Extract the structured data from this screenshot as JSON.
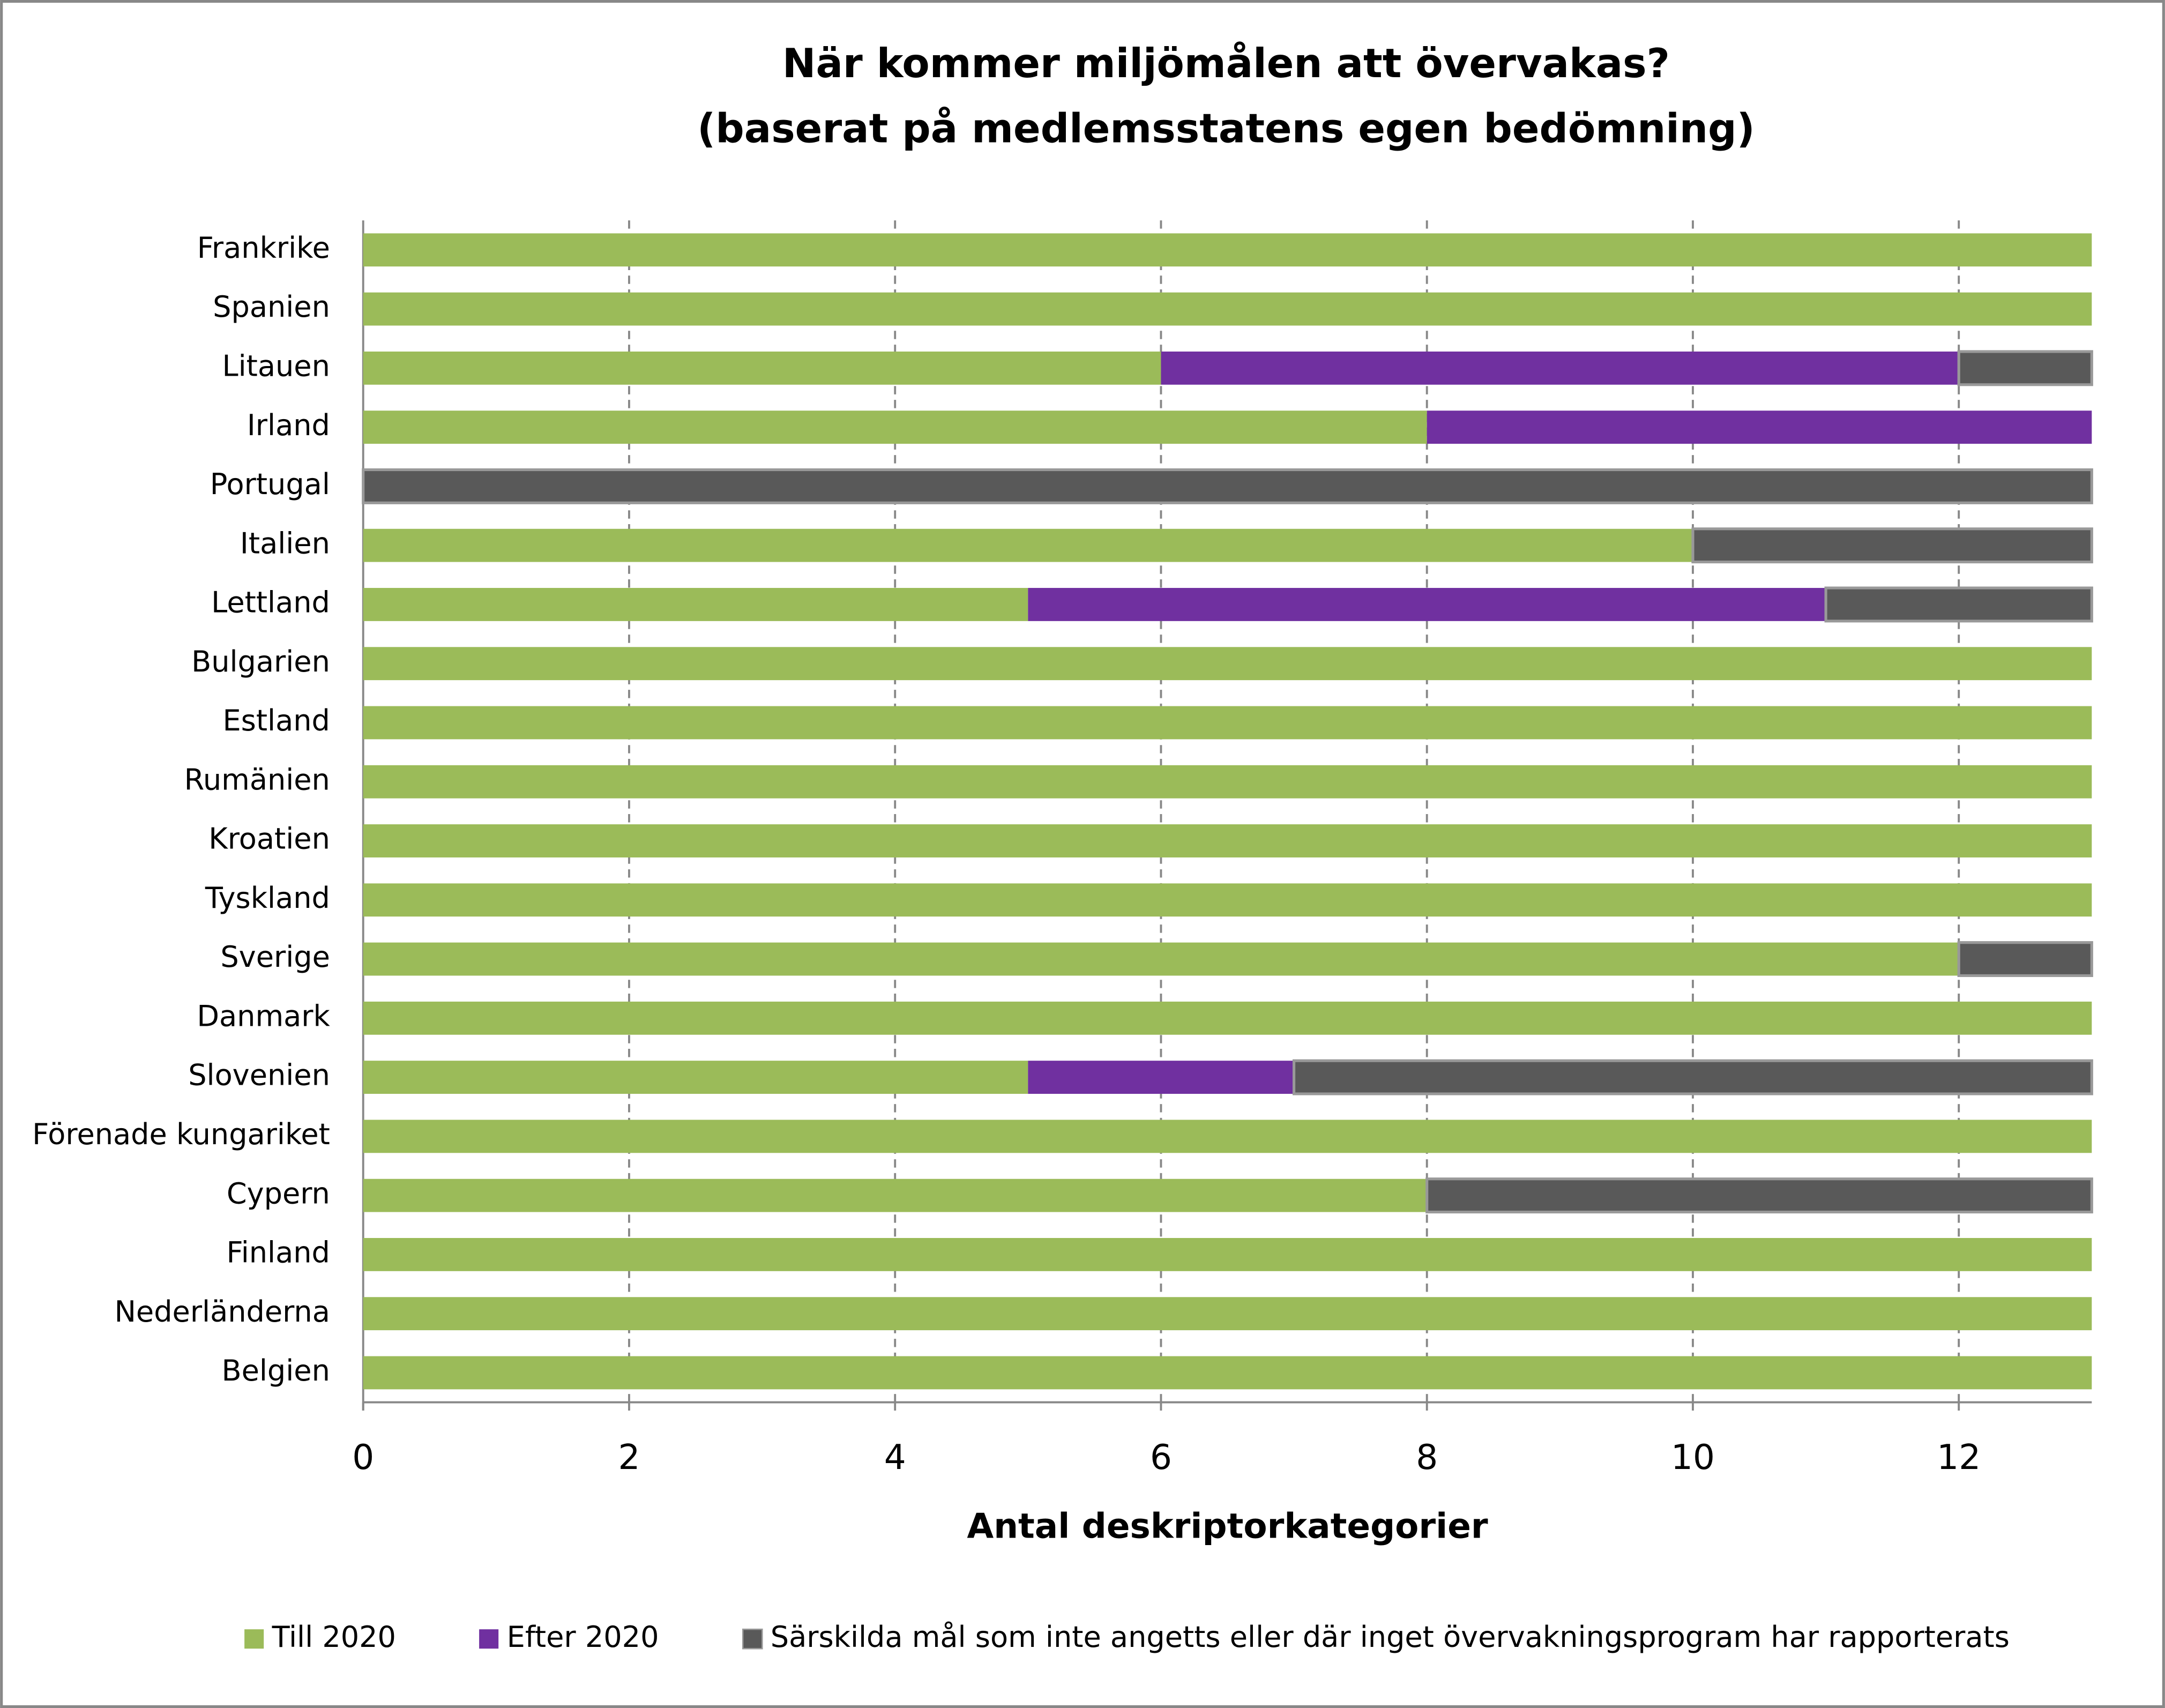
{
  "chart_data": {
    "type": "stacked-bar-horizontal",
    "title": [
      "När kommer miljömålen att övervakas?",
      "(baserat på medlemsstatens egen bedömning)"
    ],
    "x_label": "Antal deskriptorkategorier",
    "categories": [
      "Frankrike",
      "Spanien",
      "Litauen",
      "Irland",
      "Portugal",
      "Italien",
      "Lettland",
      "Bulgarien",
      "Estland",
      "Rumänien",
      "Kroatien",
      "Tyskland",
      "Sverige",
      "Danmark",
      "Slovenien",
      "Förenade kungariket",
      "Cypern",
      "Finland",
      "Nederländerna",
      "Belgien"
    ],
    "series": [
      {
        "name": "Till 2020",
        "color": "#9bbb59",
        "values": [
          13,
          13,
          6,
          8,
          0,
          10,
          5,
          13,
          13,
          13,
          13,
          13,
          12,
          13,
          5,
          13,
          8,
          13,
          13,
          13
        ]
      },
      {
        "name": "Efter 2020",
        "color": "#7030a0",
        "values": [
          0,
          0,
          6,
          5,
          0,
          0,
          6,
          0,
          0,
          0,
          0,
          0,
          0,
          0,
          2,
          0,
          0,
          0,
          0,
          0
        ]
      },
      {
        "name": "Särskilda mål som inte angetts eller där inget övervakningsprogram har rapporterats",
        "color": "#595959",
        "values": [
          0,
          0,
          1,
          0,
          13,
          3,
          2,
          0,
          0,
          0,
          0,
          0,
          1,
          0,
          6,
          0,
          5,
          0,
          0,
          0
        ]
      }
    ],
    "xlim": [
      0,
      13
    ],
    "xticks": [
      0,
      2,
      4,
      6,
      8,
      10,
      12
    ],
    "grid": true,
    "legend": "bottom"
  }
}
